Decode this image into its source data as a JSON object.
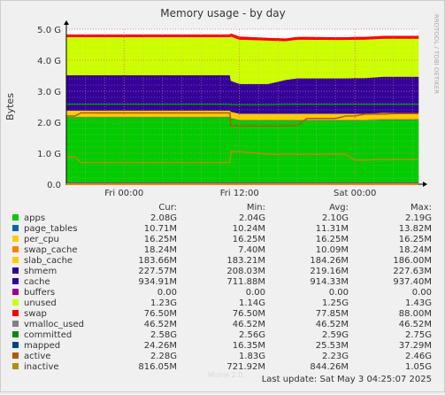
{
  "chart_data": {
    "type": "area",
    "title": "Memory usage - by day",
    "ylabel": "Bytes",
    "xlabel": "",
    "side_label": "RRDTOOL / TOBI OETIKER",
    "watermark": "Munin 2.0.",
    "ylim": [
      0,
      5.0
    ],
    "y_unit": "G",
    "y_ticks": [
      0.0,
      1.0,
      2.0,
      3.0,
      4.0,
      5.0
    ],
    "y_tick_labels": [
      "0.0",
      "1.0 G",
      "2.0 G",
      "3.0 G",
      "4.0 G",
      "5.0 G"
    ],
    "x_tick_labels": [
      "Fri 00:00",
      "Fri 12:00",
      "Sat 00:00"
    ],
    "x_tick_hours": [
      6,
      18,
      30
    ],
    "x_range_hours": [
      0,
      36.6
    ],
    "grid": true,
    "legend_headers": [
      "Cur:",
      "Min:",
      "Avg:",
      "Max:"
    ],
    "footer": "Last update:  Sat May  3 04:25:07 2025",
    "x": [
      0,
      0.9,
      1.5,
      1.55,
      2.2,
      2.35,
      12,
      17,
      17.1,
      18,
      21,
      22.8,
      24,
      25,
      28,
      29,
      30,
      31,
      33,
      34,
      36.6
    ],
    "stack_order": [
      "apps",
      "page_tables",
      "per_cpu",
      "swap_cache",
      "slab_cache",
      "shmem",
      "cache",
      "buffers",
      "unused",
      "swap"
    ],
    "series": [
      {
        "name": "apps",
        "color": "#00cc00",
        "cur": "2.08G",
        "min": "2.04G",
        "avg": "2.10G",
        "max": "2.19G",
        "values": [
          2.16,
          2.16,
          2.16,
          2.16,
          2.16,
          2.16,
          2.16,
          2.16,
          2.12,
          2.06,
          2.06,
          2.06,
          2.06,
          2.06,
          2.06,
          2.06,
          2.06,
          2.06,
          2.08,
          2.08,
          2.08
        ]
      },
      {
        "name": "page_tables",
        "color": "#0066b3",
        "cur": "10.71M",
        "min": "10.24M",
        "avg": "11.31M",
        "max": "13.82M",
        "values": [
          0.012,
          0.012,
          0.012,
          0.012,
          0.012,
          0.012,
          0.012,
          0.012,
          0.011,
          0.011,
          0.011,
          0.011,
          0.011,
          0.011,
          0.011,
          0.011,
          0.011,
          0.011,
          0.011,
          0.011,
          0.011
        ]
      },
      {
        "name": "per_cpu",
        "color": "#ffcc00",
        "cur": "16.25M",
        "min": "16.25M",
        "avg": "16.25M",
        "max": "16.25M",
        "values": [
          0.016,
          0.016,
          0.016,
          0.016,
          0.016,
          0.016,
          0.016,
          0.016,
          0.016,
          0.016,
          0.016,
          0.016,
          0.016,
          0.016,
          0.016,
          0.016,
          0.016,
          0.016,
          0.016,
          0.016,
          0.016
        ]
      },
      {
        "name": "swap_cache",
        "color": "#ff8000",
        "cur": "18.24M",
        "min": "7.40M",
        "avg": "10.09M",
        "max": "18.24M",
        "values": [
          0.008,
          0.008,
          0.008,
          0.008,
          0.008,
          0.008,
          0.008,
          0.008,
          0.008,
          0.008,
          0.008,
          0.008,
          0.008,
          0.008,
          0.008,
          0.008,
          0.008,
          0.008,
          0.018,
          0.018,
          0.018
        ]
      },
      {
        "name": "slab_cache",
        "color": "#ffcc00",
        "cur": "183.66M",
        "min": "183.21M",
        "avg": "184.26M",
        "max": "186.00M",
        "values": [
          0.184,
          0.184,
          0.184,
          0.184,
          0.184,
          0.184,
          0.184,
          0.184,
          0.184,
          0.184,
          0.184,
          0.184,
          0.184,
          0.184,
          0.184,
          0.184,
          0.184,
          0.184,
          0.184,
          0.184,
          0.184
        ]
      },
      {
        "name": "shmem",
        "color": "#330099",
        "cur": "227.57M",
        "min": "208.03M",
        "avg": "219.16M",
        "max": "227.63M",
        "values": [
          0.21,
          0.21,
          0.21,
          0.21,
          0.21,
          0.21,
          0.21,
          0.21,
          0.21,
          0.21,
          0.21,
          0.21,
          0.21,
          0.21,
          0.21,
          0.21,
          0.22,
          0.22,
          0.227,
          0.227,
          0.227
        ]
      },
      {
        "name": "cache",
        "color": "#330099",
        "cur": "934.91M",
        "min": "711.88M",
        "avg": "914.33M",
        "max": "937.40M",
        "values": [
          0.93,
          0.93,
          0.93,
          0.93,
          0.93,
          0.93,
          0.93,
          0.93,
          0.79,
          0.75,
          0.75,
          0.88,
          0.93,
          0.93,
          0.93,
          0.93,
          0.93,
          0.93,
          0.935,
          0.935,
          0.935
        ]
      },
      {
        "name": "buffers",
        "color": "#990099",
        "cur": "0.00",
        "min": "0.00",
        "avg": "0.00",
        "max": "0.00",
        "values": [
          0,
          0,
          0,
          0,
          0,
          0,
          0,
          0,
          0,
          0,
          0,
          0,
          0,
          0,
          0,
          0,
          0,
          0,
          0,
          0,
          0
        ]
      },
      {
        "name": "unused",
        "color": "#ccff00",
        "cur": "1.23G",
        "min": "1.14G",
        "avg": "1.25G",
        "max": "1.43G",
        "values": [
          1.23,
          1.23,
          1.23,
          1.23,
          1.23,
          1.23,
          1.23,
          1.23,
          1.43,
          1.43,
          1.4,
          1.25,
          1.25,
          1.25,
          1.24,
          1.24,
          1.24,
          1.24,
          1.23,
          1.23,
          1.23
        ]
      },
      {
        "name": "swap",
        "color": "#ff0000",
        "cur": "76.50M",
        "min": "76.50M",
        "avg": "77.85M",
        "max": "88.00M",
        "values": [
          0.0765,
          0.0765,
          0.0765,
          0.0765,
          0.0765,
          0.0765,
          0.0765,
          0.0765,
          0.088,
          0.088,
          0.0765,
          0.0765,
          0.0765,
          0.0765,
          0.0765,
          0.0765,
          0.0765,
          0.0765,
          0.0765,
          0.0765,
          0.0765
        ]
      },
      {
        "name": "vmalloc_used",
        "color": "#808080",
        "cur": "46.52M",
        "min": "46.52M",
        "avg": "46.52M",
        "max": "46.52M",
        "values": [
          0.0465,
          0.0465,
          0.0465,
          0.0465,
          0.0465,
          0.0465,
          0.0465,
          0.0465,
          0.0465,
          0.0465,
          0.0465,
          0.0465,
          0.0465,
          0.0465,
          0.0465,
          0.0465,
          0.0465,
          0.0465,
          0.0465,
          0.0465,
          0.0465
        ]
      },
      {
        "name": "committed",
        "color": "#008f00",
        "cur": "2.58G",
        "min": "2.56G",
        "avg": "2.59G",
        "max": "2.75G",
        "values": [
          2.58,
          2.58,
          2.58,
          2.58,
          2.58,
          2.58,
          2.58,
          2.58,
          2.56,
          2.56,
          2.56,
          2.58,
          2.58,
          2.58,
          2.58,
          2.58,
          2.58,
          2.58,
          2.58,
          2.58,
          2.58
        ]
      },
      {
        "name": "mapped",
        "color": "#00487d",
        "cur": "24.26M",
        "min": "16.35M",
        "avg": "25.53M",
        "max": "37.29M",
        "values": [
          0.024,
          0.024,
          0.024,
          0.024,
          0.024,
          0.024,
          0.024,
          0.024,
          0.024,
          0.024,
          0.024,
          0.024,
          0.024,
          0.024,
          0.024,
          0.024,
          0.024,
          0.024,
          0.024,
          0.024,
          0.024
        ]
      },
      {
        "name": "active",
        "color": "#b35a00",
        "cur": "2.28G",
        "min": "1.83G",
        "avg": "2.23G",
        "max": "2.46G",
        "values": [
          2.2,
          2.2,
          2.3,
          2.3,
          2.3,
          2.3,
          2.3,
          2.3,
          1.88,
          1.88,
          1.88,
          1.88,
          1.9,
          2.12,
          2.12,
          2.2,
          2.2,
          2.26,
          2.26,
          2.28,
          2.28
        ]
      },
      {
        "name": "inactive",
        "color": "#b38f00",
        "cur": "816.05M",
        "min": "721.92M",
        "avg": "844.26M",
        "max": "1.05G",
        "values": [
          0.88,
          0.88,
          0.7,
          0.7,
          0.7,
          0.7,
          0.7,
          0.7,
          1.05,
          1.05,
          0.97,
          0.97,
          0.97,
          0.97,
          0.97,
          0.97,
          0.78,
          0.78,
          0.8,
          0.8,
          0.8
        ]
      }
    ]
  }
}
